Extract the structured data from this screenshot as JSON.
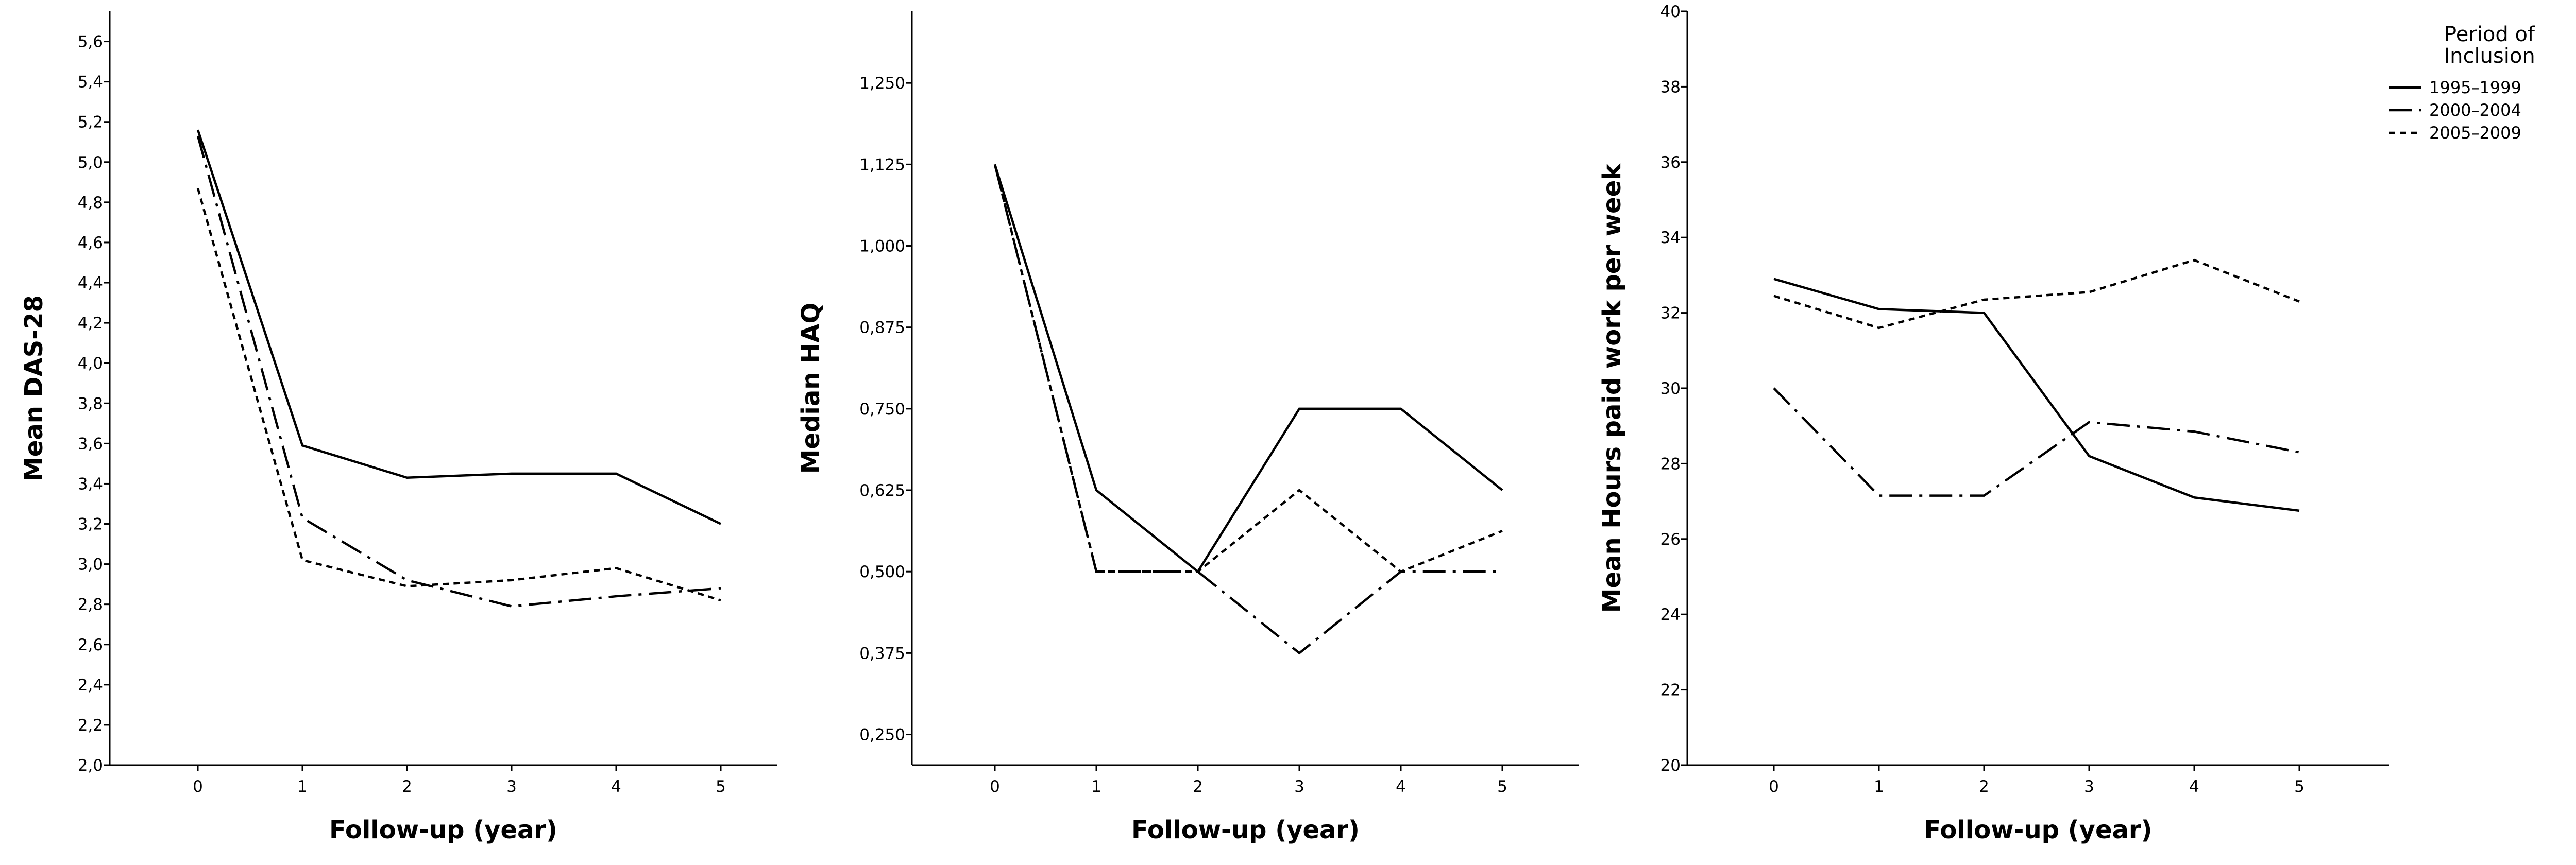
{
  "chart_data": [
    {
      "type": "line",
      "title": "",
      "xlabel": "Follow-up (year)",
      "ylabel": "Mean DAS-28",
      "categories": [
        "0",
        "1",
        "2",
        "3",
        "4",
        "5"
      ],
      "yticks": [
        "2,0",
        "2,2",
        "2,4",
        "2,6",
        "2,8",
        "3,0",
        "3,2",
        "3,4",
        "3,6",
        "3,8",
        "4,0",
        "4,2",
        "4,4",
        "4,6",
        "4,8",
        "5,0",
        "5,2",
        "5,4",
        "5,6"
      ],
      "ylim": [
        2.0,
        5.75
      ],
      "grid": false,
      "series": [
        {
          "name": "1995-1999",
          "style": "solid",
          "values": [
            5.16,
            3.59,
            3.43,
            3.45,
            3.45,
            3.2
          ]
        },
        {
          "name": "2000-2004",
          "style": "dash-dot",
          "values": [
            5.13,
            3.23,
            2.92,
            2.79,
            2.84,
            2.88
          ]
        },
        {
          "name": "2005-2009",
          "style": "dotted",
          "values": [
            4.87,
            3.02,
            2.89,
            2.92,
            2.98,
            2.82
          ]
        }
      ]
    },
    {
      "type": "line",
      "title": "",
      "xlabel": "Follow-up (year)",
      "ylabel": "Median HAQ",
      "categories": [
        "0",
        "1",
        "2",
        "3",
        "4",
        "5"
      ],
      "yticks": [
        "0,250",
        "0,375",
        "0,500",
        "0,625",
        "0,750",
        "0,875",
        "1,000",
        "1,125",
        "1,250"
      ],
      "ylim": [
        0.203,
        1.36
      ],
      "grid": false,
      "series": [
        {
          "name": "1995-1999",
          "style": "solid",
          "values": [
            1.125,
            0.625,
            0.5,
            0.75,
            0.75,
            0.625
          ]
        },
        {
          "name": "2000-2004",
          "style": "dash-dot",
          "values": [
            1.125,
            0.5,
            0.5,
            0.375,
            0.5,
            0.5
          ]
        },
        {
          "name": "2005-2009",
          "style": "dotted",
          "values": [
            1.125,
            0.5,
            0.5,
            0.625,
            0.5,
            0.5625
          ]
        }
      ]
    },
    {
      "type": "line",
      "title": "",
      "xlabel": "Follow-up (year)",
      "ylabel": "Mean Hours paid work per week",
      "categories": [
        "0",
        "1",
        "2",
        "3",
        "4",
        "5"
      ],
      "yticks": [
        "20",
        "22",
        "24",
        "26",
        "28",
        "30",
        "32",
        "34",
        "36",
        "38",
        "40"
      ],
      "ylim": [
        20,
        40
      ],
      "grid": false,
      "series": [
        {
          "name": "1995-1999",
          "style": "solid",
          "values": [
            32.9,
            32.1,
            32.0,
            28.2,
            27.1,
            26.75
          ]
        },
        {
          "name": "2000-2004",
          "style": "dash-dot",
          "values": [
            30.0,
            27.15,
            27.15,
            29.1,
            28.85,
            28.3
          ]
        },
        {
          "name": "2005-2009",
          "style": "dotted",
          "values": [
            32.45,
            31.6,
            32.35,
            32.55,
            33.4,
            32.3
          ]
        }
      ]
    }
  ],
  "legend": {
    "title_line1": "Period of",
    "title_line2": "Inclusion",
    "placement": "top-right",
    "entries": [
      {
        "label": "1995–1999",
        "style": "solid"
      },
      {
        "label": "2000–2004",
        "style": "dash-dot"
      },
      {
        "label": "2005–2009",
        "style": "dotted"
      }
    ]
  }
}
